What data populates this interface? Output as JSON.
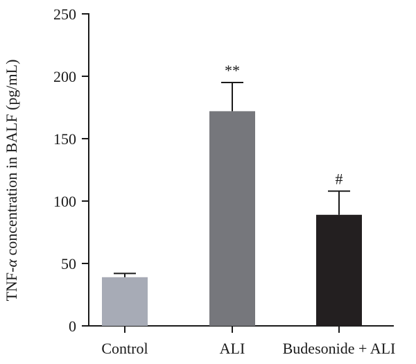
{
  "chart_data": {
    "type": "bar",
    "categories": [
      "Control",
      "ALI",
      "Budesonide + ALI"
    ],
    "values": [
      39,
      172,
      89
    ],
    "errors": [
      3,
      23,
      19
    ],
    "annotations": [
      "",
      "**",
      "#"
    ],
    "colors": [
      "#a7abb6",
      "#76777c",
      "#231f20"
    ],
    "ylabel": "TNF-α concentration in BALF (pg/mL)",
    "ylabel_prefix": "TNF-",
    "ylabel_greek": "α",
    "ylabel_suffix": " concentration in BALF (pg/mL)",
    "ylim": [
      0,
      250
    ],
    "yticks": [
      0,
      50,
      100,
      150,
      200,
      250
    ],
    "ytick_labels": [
      "0",
      "50",
      "100",
      "150",
      "200",
      "250"
    ]
  }
}
